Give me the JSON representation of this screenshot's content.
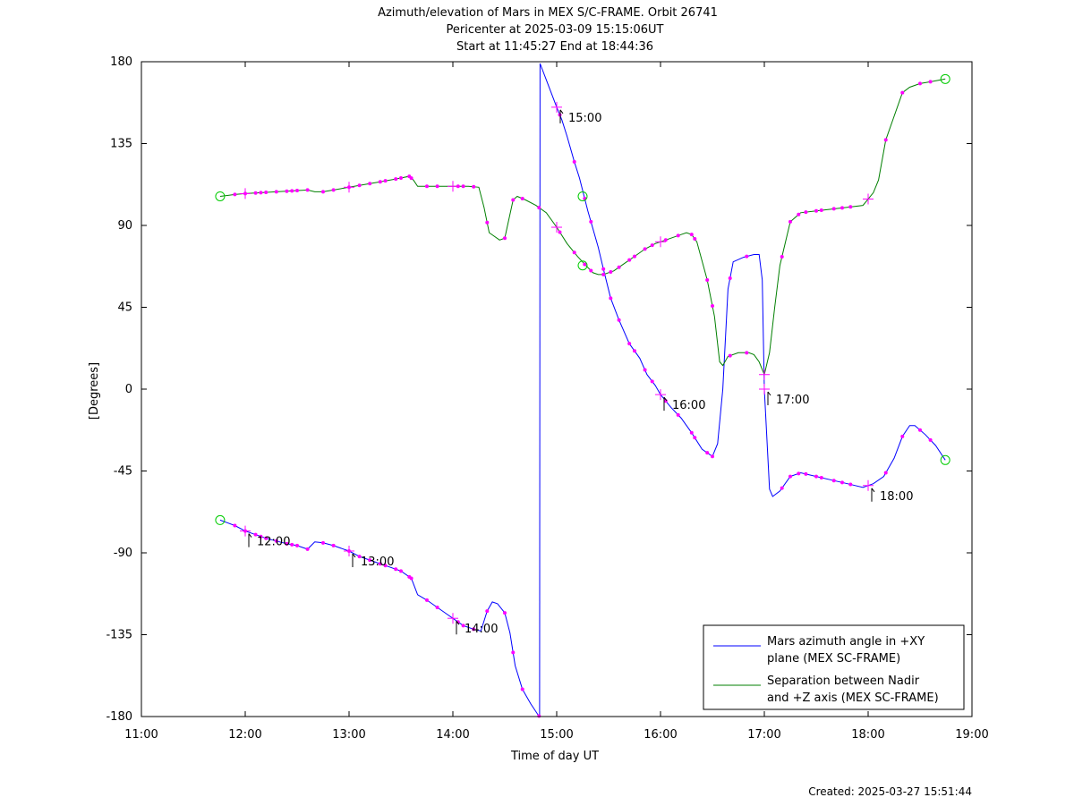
{
  "chart_data": {
    "type": "line",
    "title": [
      "Azimuth/elevation of Mars in MEX S/C-FRAME.  Orbit 26741",
      "Pericenter at 2025-03-09 15:15:06UT",
      "Start at 11:45:27 End at 18:44:36"
    ],
    "xlabel": "Time of day UT",
    "ylabel": "[Degrees]",
    "xlim": [
      11,
      19
    ],
    "ylim": [
      -180,
      180
    ],
    "x_ticks": [
      11,
      12,
      13,
      14,
      15,
      16,
      17,
      18,
      19
    ],
    "x_tick_labels": [
      "11:00",
      "12:00",
      "13:00",
      "14:00",
      "15:00",
      "16:00",
      "17:00",
      "18:00",
      "19:00"
    ],
    "y_ticks": [
      180,
      135,
      90,
      45,
      0,
      -45,
      -90,
      -135,
      -180
    ],
    "y_tick_labels": [
      "180",
      "135",
      "90",
      "45",
      "0",
      "-45",
      "-90",
      "-135",
      "-180"
    ],
    "legend_position": "bottom-right",
    "series": [
      {
        "name": "Mars azimuth angle in +XY plane (MEX SC-FRAME)",
        "legend_lines": [
          "Mars azimuth angle in +XY",
          "plane (MEX SC-FRAME)"
        ],
        "color": "#0000ff",
        "points": [
          [
            11.758,
            -72
          ],
          [
            11.9,
            -75
          ],
          [
            12.0,
            -78
          ],
          [
            12.1,
            -80
          ],
          [
            12.2,
            -82
          ],
          [
            12.3,
            -83.5
          ],
          [
            12.4,
            -85
          ],
          [
            12.5,
            -86
          ],
          [
            12.6,
            -88
          ],
          [
            12.67,
            -84
          ],
          [
            12.75,
            -84.5
          ],
          [
            12.85,
            -86
          ],
          [
            13.0,
            -89
          ],
          [
            13.1,
            -92
          ],
          [
            13.2,
            -94
          ],
          [
            13.35,
            -97
          ],
          [
            13.5,
            -100
          ],
          [
            13.6,
            -104
          ],
          [
            13.66,
            -113
          ],
          [
            13.75,
            -116
          ],
          [
            13.85,
            -120
          ],
          [
            13.95,
            -124
          ],
          [
            14.0,
            -126
          ],
          [
            14.1,
            -130
          ],
          [
            14.2,
            -132
          ],
          [
            14.27,
            -133
          ],
          [
            14.33,
            -122
          ],
          [
            14.38,
            -117
          ],
          [
            14.43,
            -118
          ],
          [
            14.5,
            -123
          ],
          [
            14.55,
            -134
          ],
          [
            14.6,
            -152
          ],
          [
            14.67,
            -165
          ],
          [
            14.75,
            -173
          ],
          [
            14.82,
            -179
          ],
          [
            14.835,
            -180
          ],
          [
            14.84,
            179
          ],
          [
            14.9,
            170
          ],
          [
            15.0,
            155
          ],
          [
            15.05,
            148
          ],
          [
            15.1,
            139
          ],
          [
            15.17,
            125
          ],
          [
            15.22,
            116
          ],
          [
            15.3,
            98
          ],
          [
            15.4,
            78
          ],
          [
            15.45,
            66
          ],
          [
            15.52,
            50
          ],
          [
            15.6,
            38
          ],
          [
            15.7,
            25
          ],
          [
            15.8,
            17
          ],
          [
            15.87,
            8
          ],
          [
            15.95,
            2
          ],
          [
            16.0,
            -3
          ],
          [
            16.1,
            -10
          ],
          [
            16.2,
            -16
          ],
          [
            16.3,
            -24
          ],
          [
            16.4,
            -33
          ],
          [
            16.5,
            -37
          ],
          [
            16.55,
            -30
          ],
          [
            16.6,
            0
          ],
          [
            16.65,
            55
          ],
          [
            16.7,
            70
          ],
          [
            16.8,
            72.5
          ],
          [
            16.9,
            74
          ],
          [
            16.95,
            74
          ],
          [
            16.98,
            60
          ],
          [
            17.0,
            0
          ],
          [
            17.05,
            -55
          ],
          [
            17.08,
            -59
          ],
          [
            17.15,
            -56
          ],
          [
            17.25,
            -48
          ],
          [
            17.35,
            -46
          ],
          [
            17.5,
            -48
          ],
          [
            17.65,
            -50
          ],
          [
            17.8,
            -52
          ],
          [
            17.95,
            -54
          ],
          [
            18.05,
            -52
          ],
          [
            18.15,
            -48
          ],
          [
            18.25,
            -38
          ],
          [
            18.33,
            -26
          ],
          [
            18.4,
            -20
          ],
          [
            18.45,
            -20
          ],
          [
            18.55,
            -25
          ],
          [
            18.65,
            -31
          ],
          [
            18.743,
            -39
          ]
        ]
      },
      {
        "name": "Separation between Nadir and +Z axis (MEX SC-FRAME)",
        "legend_lines": [
          "Separation between Nadir",
          "and +Z axis (MEX SC-FRAME)"
        ],
        "color": "#007f00",
        "points": [
          [
            11.758,
            106
          ],
          [
            11.9,
            107
          ],
          [
            12.0,
            107.5
          ],
          [
            12.15,
            108
          ],
          [
            12.3,
            108.5
          ],
          [
            12.45,
            109
          ],
          [
            12.6,
            109.5
          ],
          [
            12.67,
            108.5
          ],
          [
            12.75,
            108.5
          ],
          [
            12.85,
            109.5
          ],
          [
            13.0,
            111
          ],
          [
            13.15,
            112.5
          ],
          [
            13.3,
            114
          ],
          [
            13.45,
            115.5
          ],
          [
            13.58,
            117
          ],
          [
            13.62,
            115
          ],
          [
            13.66,
            111.5
          ],
          [
            13.8,
            111.5
          ],
          [
            13.95,
            111.5
          ],
          [
            14.05,
            111.5
          ],
          [
            14.15,
            111.5
          ],
          [
            14.25,
            111
          ],
          [
            14.3,
            100
          ],
          [
            14.35,
            86
          ],
          [
            14.45,
            82
          ],
          [
            14.5,
            83
          ],
          [
            14.58,
            104
          ],
          [
            14.62,
            106
          ],
          [
            14.7,
            104
          ],
          [
            14.8,
            101
          ],
          [
            14.9,
            97
          ],
          [
            15.0,
            89
          ],
          [
            15.1,
            80
          ],
          [
            15.2,
            73
          ],
          [
            15.28,
            68
          ],
          [
            15.35,
            64
          ],
          [
            15.4,
            63
          ],
          [
            15.45,
            63
          ],
          [
            15.55,
            65
          ],
          [
            15.65,
            69
          ],
          [
            15.75,
            73
          ],
          [
            15.85,
            77
          ],
          [
            15.95,
            80
          ],
          [
            16.05,
            82
          ],
          [
            16.15,
            84
          ],
          [
            16.25,
            86
          ],
          [
            16.3,
            85
          ],
          [
            16.35,
            81
          ],
          [
            16.45,
            60
          ],
          [
            16.52,
            40
          ],
          [
            16.57,
            15
          ],
          [
            16.6,
            13
          ],
          [
            16.65,
            18
          ],
          [
            16.75,
            20
          ],
          [
            16.85,
            20
          ],
          [
            16.9,
            19
          ],
          [
            16.95,
            15
          ],
          [
            17.0,
            8
          ],
          [
            17.05,
            20
          ],
          [
            17.1,
            45
          ],
          [
            17.15,
            68
          ],
          [
            17.25,
            92
          ],
          [
            17.35,
            97
          ],
          [
            17.5,
            98
          ],
          [
            17.65,
            99
          ],
          [
            17.8,
            100
          ],
          [
            17.95,
            101
          ],
          [
            18.05,
            108
          ],
          [
            18.1,
            115
          ],
          [
            18.17,
            137
          ],
          [
            18.25,
            150
          ],
          [
            18.33,
            163
          ],
          [
            18.4,
            166
          ],
          [
            18.5,
            168
          ],
          [
            18.6,
            169
          ],
          [
            18.7,
            170
          ],
          [
            18.743,
            170.5
          ]
        ]
      }
    ],
    "marker_times": [
      11.9,
      12.1,
      12.2,
      12.3,
      12.4,
      12.5,
      12.6,
      12.75,
      12.85,
      13.1,
      13.2,
      13.35,
      13.5,
      13.6,
      13.75,
      13.85,
      14.1,
      14.2,
      14.33,
      14.5,
      14.67,
      15.17,
      15.33,
      15.52,
      15.7,
      15.85,
      16.17,
      16.33,
      16.5,
      16.67,
      16.83,
      17.17,
      17.33,
      17.5,
      17.67,
      17.83,
      18.17,
      18.33,
      18.5,
      18.6,
      13.0,
      13.3,
      13.45,
      13.58,
      12.0,
      12.15,
      12.45,
      14.05,
      14.58,
      14.83,
      15.03,
      15.27,
      15.45,
      15.6,
      15.75,
      15.92,
      16.05,
      16.3,
      16.45,
      17.25,
      17.4,
      17.55,
      17.75
    ],
    "hour_times": [
      12.0,
      13.0,
      14.0,
      15.0,
      16.0,
      17.0,
      18.0
    ],
    "hour_labels": [
      {
        "label": "12:00",
        "hour": 12.0,
        "series": 0
      },
      {
        "label": "13:00",
        "hour": 13.0,
        "series": 0
      },
      {
        "label": "14:00",
        "hour": 14.0,
        "series": 0
      },
      {
        "label": "15:00",
        "hour": 15.0,
        "series": 0
      },
      {
        "label": "16:00",
        "hour": 16.0,
        "series": 0
      },
      {
        "label": "17:00",
        "hour": 17.0,
        "series": 0
      },
      {
        "label": "18:00",
        "hour": 18.0,
        "series": 0
      }
    ],
    "circle_markers": [
      [
        11.758,
        -72
      ],
      [
        11.758,
        106
      ],
      [
        18.743,
        -39
      ],
      [
        18.743,
        170.5
      ],
      [
        15.25,
        106
      ],
      [
        15.25,
        68
      ]
    ],
    "created": "Created: 2025-03-27 15:51:44"
  }
}
